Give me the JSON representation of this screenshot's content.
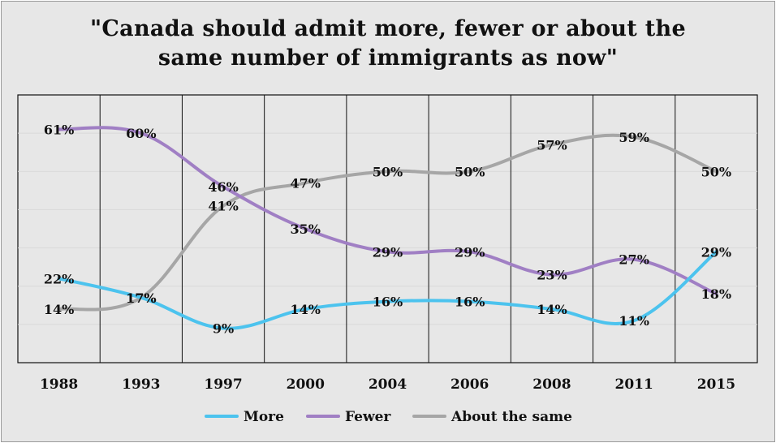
{
  "chart_data": {
    "type": "line",
    "title": "\"Canada should admit more, fewer or about the same number of immigrants as now\"",
    "title_lines": [
      "\"Canada should admit more, fewer or about the",
      "same number of immigrants as now\""
    ],
    "categories": [
      "1988",
      "1993",
      "1997",
      "2000",
      "2004",
      "2006",
      "2008",
      "2011",
      "2015"
    ],
    "series": [
      {
        "name": "More",
        "color": "#4cc3ee",
        "values": [
          22,
          17,
          9,
          14,
          16,
          16,
          14,
          11,
          29
        ],
        "labels": [
          "22%",
          "17%",
          "9%",
          "14%",
          "16%",
          "16%",
          "14%",
          "11%",
          "29%"
        ]
      },
      {
        "name": "Fewer",
        "color": "#a07fc4",
        "values": [
          61,
          60,
          46,
          35,
          29,
          29,
          23,
          27,
          18
        ],
        "labels": [
          "61%",
          "60%",
          "46%",
          "35%",
          "29%",
          "29%",
          "23%",
          "27%",
          "18%"
        ]
      },
      {
        "name": "About the same",
        "color": "#a6a6a6",
        "values": [
          14,
          17,
          41,
          47,
          50,
          50,
          57,
          59,
          50
        ],
        "labels": [
          "14%",
          "17%",
          "41%",
          "47%",
          "50%",
          "50%",
          "57%",
          "59%",
          "50%"
        ]
      }
    ],
    "ylim": [
      0,
      70
    ],
    "grid": true,
    "legend_position": "bottom"
  }
}
